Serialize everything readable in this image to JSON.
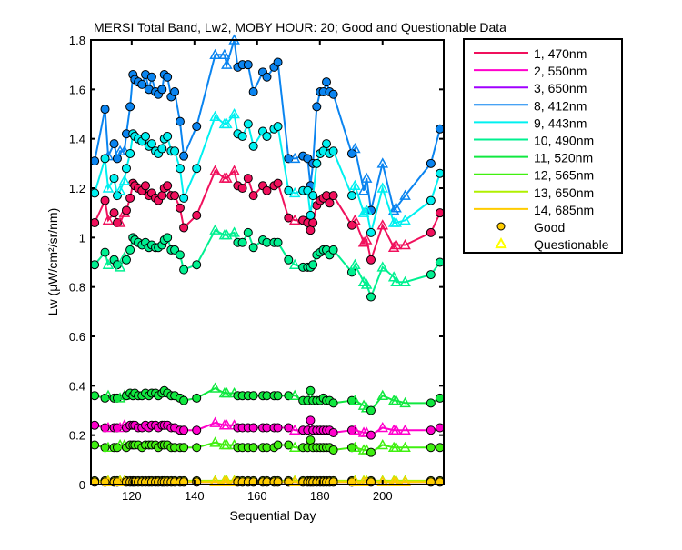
{
  "chart_data": {
    "type": "line",
    "title": "MERSI Total Band,  Lw2, MOBY HOUR: 20;  Good and Questionable Data",
    "xlabel": "Sequential Day",
    "ylabel": "Lw (μW/cm²/sr/nm)",
    "xlim": [
      107,
      219.5
    ],
    "ylim": [
      0,
      1.8
    ],
    "xticks": [
      120,
      140,
      160,
      180,
      200
    ],
    "yticks": [
      "0",
      "0.2",
      "0.4",
      "0.6",
      "0.8",
      "1",
      "1.2",
      "1.4",
      "1.6",
      "1.8"
    ],
    "grid": false,
    "legend_position": "outside-right",
    "x": [
      108.2,
      111.5,
      112.5,
      114.4,
      115.4,
      116.3,
      117.7,
      118.3,
      119.5,
      120.4,
      121,
      122.1,
      123.3,
      124.4,
      125.5,
      126.4,
      127.6,
      128.5,
      129.7,
      130.4,
      131.4,
      132.6,
      133.7,
      135.4,
      136.6,
      140.7,
      146.6,
      149.6,
      150.3,
      152.7,
      153.8,
      155.3,
      157.1,
      158.8,
      161.8,
      163.1,
      165.4,
      166.6,
      170,
      172,
      174.6,
      176.1,
      177,
      177.8,
      179,
      180.1,
      181.1,
      182.1,
      183.1,
      184.3,
      190.2,
      191.2,
      194,
      194.9,
      196.3,
      200,
      203.6,
      204.3,
      207.2,
      215.4,
      218.3
    ],
    "quality": [
      "G",
      "G",
      "Q",
      "G",
      "G",
      "Q",
      "Q",
      "G",
      "G",
      "G",
      "G",
      "G",
      "G",
      "G",
      "G",
      "G",
      "G",
      "G",
      "G",
      "G",
      "G",
      "G",
      "G",
      "G",
      "G",
      "G",
      "Q",
      "Q",
      "Q",
      "Q",
      "G",
      "G",
      "G",
      "G",
      "G",
      "G",
      "G",
      "G",
      "G",
      "Q",
      "G",
      "G",
      "G",
      "G",
      "G",
      "G",
      "G",
      "G",
      "G",
      "G",
      "G",
      "Q",
      "Q",
      "Q",
      "G",
      "Q",
      "Q",
      "Q",
      "Q",
      "G",
      "G"
    ],
    "quality_legend": [
      {
        "label": "Good",
        "marker": "circle",
        "color": "#ffcc00"
      },
      {
        "label": "Questionable",
        "marker": "triangle",
        "color": "#ffff00"
      }
    ],
    "series": [
      {
        "name": "1, 470nm",
        "color": "#f0105c",
        "values": [
          1.06,
          1.15,
          1.07,
          1.1,
          1.06,
          1.06,
          1.1,
          1.11,
          1.16,
          1.22,
          1.21,
          1.2,
          1.19,
          1.21,
          1.17,
          1.18,
          1.16,
          1.15,
          1.17,
          1.2,
          1.21,
          1.17,
          1.17,
          1.12,
          1.04,
          1.09,
          1.27,
          1.24,
          1.24,
          1.27,
          1.21,
          1.2,
          1.24,
          1.17,
          1.21,
          1.19,
          1.21,
          1.22,
          1.08,
          1.07,
          1.07,
          1.06,
          1.03,
          1.06,
          1.13,
          1.15,
          1.16,
          1.17,
          1.14,
          1.17,
          1.05,
          1.07,
          0.98,
          0.99,
          0.91,
          1.05,
          0.96,
          0.97,
          0.97,
          1.02,
          1.1
        ]
      },
      {
        "name": "2, 550nm",
        "color": "#ff00cc",
        "values": [
          0.24,
          0.23,
          0.23,
          0.23,
          0.23,
          0.23,
          0.24,
          0.23,
          0.24,
          0.24,
          0.24,
          0.23,
          0.23,
          0.24,
          0.23,
          0.24,
          0.24,
          0.23,
          0.24,
          0.24,
          0.24,
          0.23,
          0.23,
          0.22,
          0.22,
          0.22,
          0.25,
          0.24,
          0.24,
          0.24,
          0.23,
          0.23,
          0.23,
          0.23,
          0.23,
          0.23,
          0.23,
          0.23,
          0.23,
          0.22,
          0.22,
          0.22,
          0.26,
          0.22,
          0.22,
          0.22,
          0.22,
          0.22,
          0.22,
          0.21,
          0.22,
          0.22,
          0.21,
          0.21,
          0.2,
          0.23,
          0.22,
          0.22,
          0.22,
          0.22,
          0.23
        ]
      },
      {
        "name": "3, 650nm",
        "color": "#a000ff",
        "values": [
          0.01,
          0.01,
          0.01,
          0.01,
          0.01,
          0.01,
          0.01,
          0.01,
          0.01,
          0.01,
          0.01,
          0.01,
          0.01,
          0.01,
          0.01,
          0.01,
          0.01,
          0.01,
          0.01,
          0.01,
          0.01,
          0.01,
          0.01,
          0.01,
          0.01,
          0.01,
          0.01,
          0.01,
          0.01,
          0.01,
          0.01,
          0.01,
          0.01,
          0.01,
          0.01,
          0.01,
          0.01,
          0.01,
          0.01,
          0.01,
          0.01,
          0.01,
          0.01,
          0.01,
          0.01,
          0.01,
          0.01,
          0.01,
          0.01,
          0.01,
          0.01,
          0.01,
          0.01,
          0.01,
          0.01,
          0.01,
          0.01,
          0.01,
          0.01,
          0.01,
          0.01
        ]
      },
      {
        "name": "8, 412nm",
        "color": "#0a84f0",
        "values": [
          1.31,
          1.52,
          1.33,
          1.38,
          1.32,
          1.35,
          1.35,
          1.42,
          1.53,
          1.66,
          1.64,
          1.63,
          1.62,
          1.66,
          1.6,
          1.65,
          1.59,
          1.58,
          1.6,
          1.66,
          1.65,
          1.57,
          1.59,
          1.47,
          1.33,
          1.45,
          1.74,
          1.74,
          1.7,
          1.8,
          1.69,
          1.7,
          1.7,
          1.59,
          1.67,
          1.65,
          1.69,
          1.71,
          1.32,
          1.32,
          1.33,
          1.32,
          1.21,
          1.3,
          1.53,
          1.59,
          1.59,
          1.63,
          1.59,
          1.58,
          1.34,
          1.36,
          1.19,
          1.24,
          1.11,
          1.3,
          1.11,
          1.12,
          1.17,
          1.3,
          1.44
        ]
      },
      {
        "name": "9, 443nm",
        "color": "#00f0f0",
        "values": [
          1.18,
          1.32,
          1.2,
          1.24,
          1.17,
          1.19,
          1.23,
          1.28,
          1.34,
          1.42,
          1.41,
          1.4,
          1.39,
          1.41,
          1.37,
          1.38,
          1.35,
          1.34,
          1.36,
          1.4,
          1.41,
          1.35,
          1.35,
          1.28,
          1.16,
          1.28,
          1.49,
          1.46,
          1.46,
          1.5,
          1.42,
          1.41,
          1.46,
          1.37,
          1.43,
          1.41,
          1.44,
          1.45,
          1.19,
          1.18,
          1.19,
          1.19,
          1.09,
          1.17,
          1.3,
          1.34,
          1.35,
          1.38,
          1.34,
          1.35,
          1.17,
          1.21,
          1.1,
          1.11,
          1.02,
          1.2,
          1.06,
          1.06,
          1.07,
          1.15,
          1.26
        ]
      },
      {
        "name": "10, 490nm",
        "color": "#00f090",
        "values": [
          0.89,
          0.94,
          0.89,
          0.91,
          0.89,
          0.88,
          0.92,
          0.91,
          0.95,
          1.0,
          0.99,
          0.98,
          0.97,
          0.98,
          0.96,
          0.97,
          0.96,
          0.96,
          0.97,
          0.99,
          1.0,
          0.95,
          0.95,
          0.93,
          0.87,
          0.89,
          1.03,
          1.01,
          1.01,
          1.02,
          0.98,
          0.98,
          1.02,
          0.96,
          0.99,
          0.98,
          0.98,
          0.98,
          0.91,
          0.89,
          0.88,
          0.88,
          0.88,
          0.89,
          0.93,
          0.94,
          0.95,
          0.95,
          0.93,
          0.95,
          0.86,
          0.89,
          0.82,
          0.81,
          0.76,
          0.88,
          0.84,
          0.82,
          0.82,
          0.85,
          0.9
        ]
      },
      {
        "name": "11, 520nm",
        "color": "#10e840",
        "values": [
          0.36,
          0.35,
          0.36,
          0.35,
          0.35,
          0.35,
          0.36,
          0.36,
          0.37,
          0.36,
          0.37,
          0.36,
          0.36,
          0.37,
          0.36,
          0.37,
          0.37,
          0.36,
          0.37,
          0.38,
          0.37,
          0.36,
          0.36,
          0.35,
          0.34,
          0.35,
          0.39,
          0.37,
          0.37,
          0.37,
          0.36,
          0.36,
          0.36,
          0.36,
          0.36,
          0.36,
          0.36,
          0.36,
          0.36,
          0.36,
          0.34,
          0.34,
          0.38,
          0.34,
          0.34,
          0.34,
          0.35,
          0.34,
          0.34,
          0.33,
          0.34,
          0.34,
          0.32,
          0.31,
          0.3,
          0.36,
          0.34,
          0.34,
          0.33,
          0.33,
          0.35
        ]
      },
      {
        "name": "12, 565nm",
        "color": "#40f010",
        "values": [
          0.16,
          0.15,
          0.15,
          0.15,
          0.15,
          0.16,
          0.16,
          0.15,
          0.16,
          0.16,
          0.16,
          0.16,
          0.15,
          0.16,
          0.16,
          0.16,
          0.16,
          0.15,
          0.16,
          0.16,
          0.16,
          0.15,
          0.15,
          0.15,
          0.15,
          0.15,
          0.17,
          0.16,
          0.16,
          0.16,
          0.15,
          0.15,
          0.15,
          0.15,
          0.15,
          0.15,
          0.15,
          0.16,
          0.16,
          0.15,
          0.15,
          0.15,
          0.18,
          0.15,
          0.15,
          0.15,
          0.15,
          0.15,
          0.15,
          0.14,
          0.15,
          0.15,
          0.14,
          0.14,
          0.13,
          0.16,
          0.15,
          0.15,
          0.15,
          0.15,
          0.15
        ]
      },
      {
        "name": "13, 650nm",
        "color": "#b0f000",
        "values": [
          0.015,
          0.015,
          0.015,
          0.015,
          0.015,
          0.015,
          0.015,
          0.015,
          0.015,
          0.015,
          0.015,
          0.015,
          0.015,
          0.015,
          0.015,
          0.015,
          0.015,
          0.015,
          0.015,
          0.015,
          0.015,
          0.015,
          0.015,
          0.015,
          0.015,
          0.015,
          0.015,
          0.015,
          0.015,
          0.015,
          0.015,
          0.015,
          0.015,
          0.015,
          0.015,
          0.015,
          0.015,
          0.015,
          0.015,
          0.015,
          0.015,
          0.015,
          0.015,
          0.015,
          0.015,
          0.015,
          0.015,
          0.015,
          0.015,
          0.015,
          0.015,
          0.015,
          0.015,
          0.015,
          0.015,
          0.015,
          0.015,
          0.015,
          0.015,
          0.015,
          0.015
        ]
      },
      {
        "name": "14, 685nm",
        "color": "#ffcc00",
        "values": [
          0.01,
          0.01,
          0.01,
          0.01,
          0.01,
          0.01,
          0.01,
          0.01,
          0.01,
          0.01,
          0.01,
          0.01,
          0.01,
          0.01,
          0.01,
          0.01,
          0.01,
          0.01,
          0.01,
          0.01,
          0.01,
          0.01,
          0.01,
          0.01,
          0.01,
          0.01,
          0.01,
          0.01,
          0.01,
          0.01,
          0.01,
          0.01,
          0.01,
          0.01,
          0.01,
          0.01,
          0.01,
          0.01,
          0.01,
          0.01,
          0.01,
          0.01,
          0.01,
          0.01,
          0.01,
          0.01,
          0.01,
          0.01,
          0.01,
          0.01,
          0.01,
          0.01,
          0.01,
          0.01,
          0.01,
          0.01,
          0.01,
          0.01,
          0.01,
          0.01,
          0.01
        ]
      }
    ]
  }
}
